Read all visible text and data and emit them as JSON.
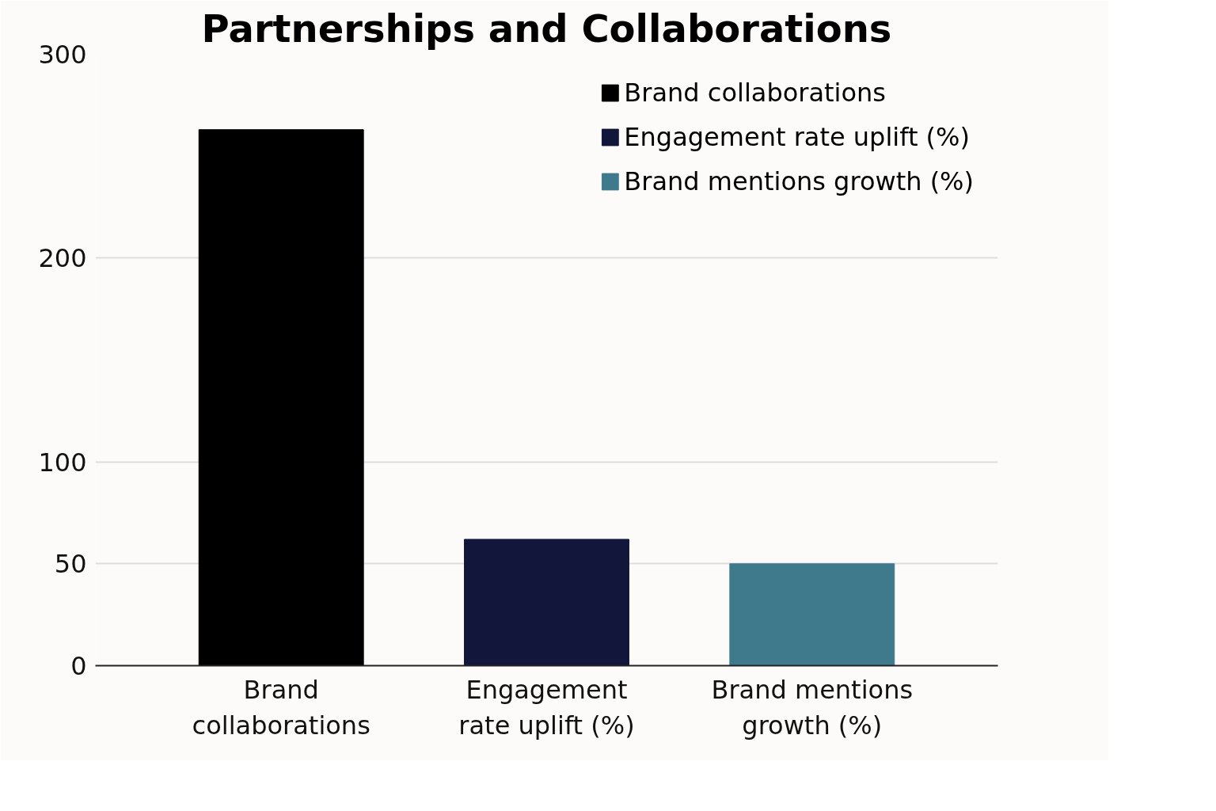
{
  "chart_data": {
    "type": "bar",
    "title": "Partnerships and Collaborations",
    "categories": [
      "Brand collaborations",
      "Engagement rate uplift (%)",
      "Brand mentions growth (%)"
    ],
    "series": [
      {
        "name": "Brand collaborations",
        "color": "#000000",
        "values": [
          263,
          null,
          null
        ]
      },
      {
        "name": "Engagement rate uplift (%)",
        "color": "#12163b",
        "values": [
          null,
          62,
          null
        ]
      },
      {
        "name": "Brand mentions growth (%)",
        "color": "#3f7a8c",
        "values": [
          null,
          null,
          50
        ]
      }
    ],
    "ylim": [
      0,
      300
    ],
    "yticks": [
      0,
      50,
      100,
      200,
      300
    ],
    "grid": "y",
    "legend": "top right"
  }
}
